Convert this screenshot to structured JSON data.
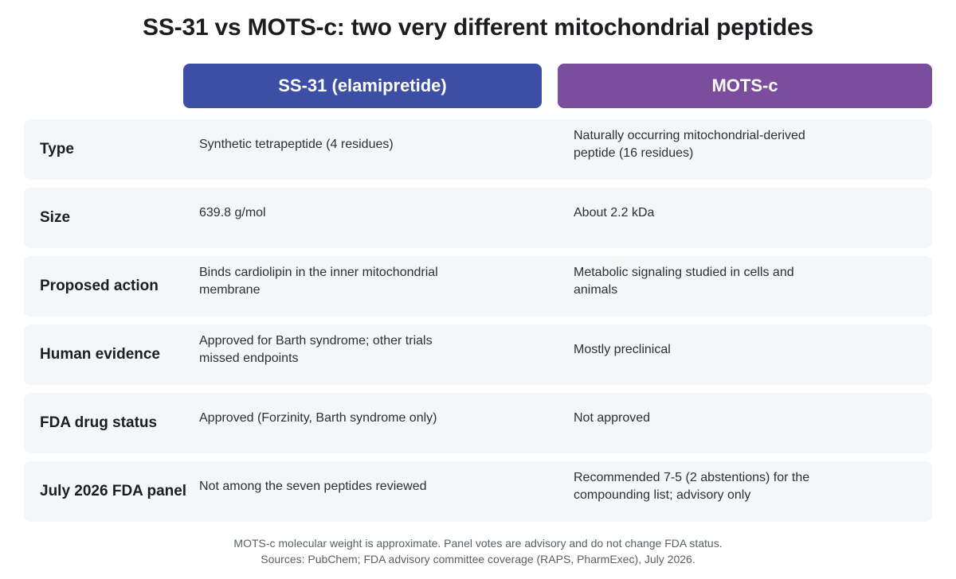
{
  "title": "SS-31 vs MOTS-c: two very different mitochondrial peptides",
  "columns": {
    "ss31": {
      "label": "SS-31 (elamipretide)",
      "color": "#3c4fa5"
    },
    "mots": {
      "label": "MOTS-c",
      "color": "#7b4d9d"
    }
  },
  "rows": [
    {
      "label": "Type",
      "ss31": "Synthetic tetrapeptide (4 residues)",
      "mots": "Naturally occurring mitochondrial-derived peptide (16 residues)"
    },
    {
      "label": "Size",
      "ss31": "639.8 g/mol",
      "mots": "About 2.2 kDa"
    },
    {
      "label": "Proposed action",
      "ss31": "Binds cardiolipin in the inner mitochondrial membrane",
      "mots": "Metabolic signaling studied in cells and animals"
    },
    {
      "label": "Human evidence",
      "ss31": "Approved for Barth syndrome; other trials missed endpoints",
      "mots": "Mostly preclinical"
    },
    {
      "label": "FDA drug status",
      "ss31": "Approved (Forzinity, Barth syndrome only)",
      "mots": "Not approved"
    },
    {
      "label": "July 2026 FDA panel",
      "ss31": "Not among the seven peptides reviewed",
      "mots": "Recommended 7-5 (2 abstentions) for the compounding list; advisory only"
    }
  ],
  "footnotes": [
    "MOTS-c molecular weight is approximate. Panel votes are advisory and do not change FDA status.",
    "Sources: PubChem; FDA advisory committee coverage (RAPS, PharmExec), July 2026."
  ]
}
